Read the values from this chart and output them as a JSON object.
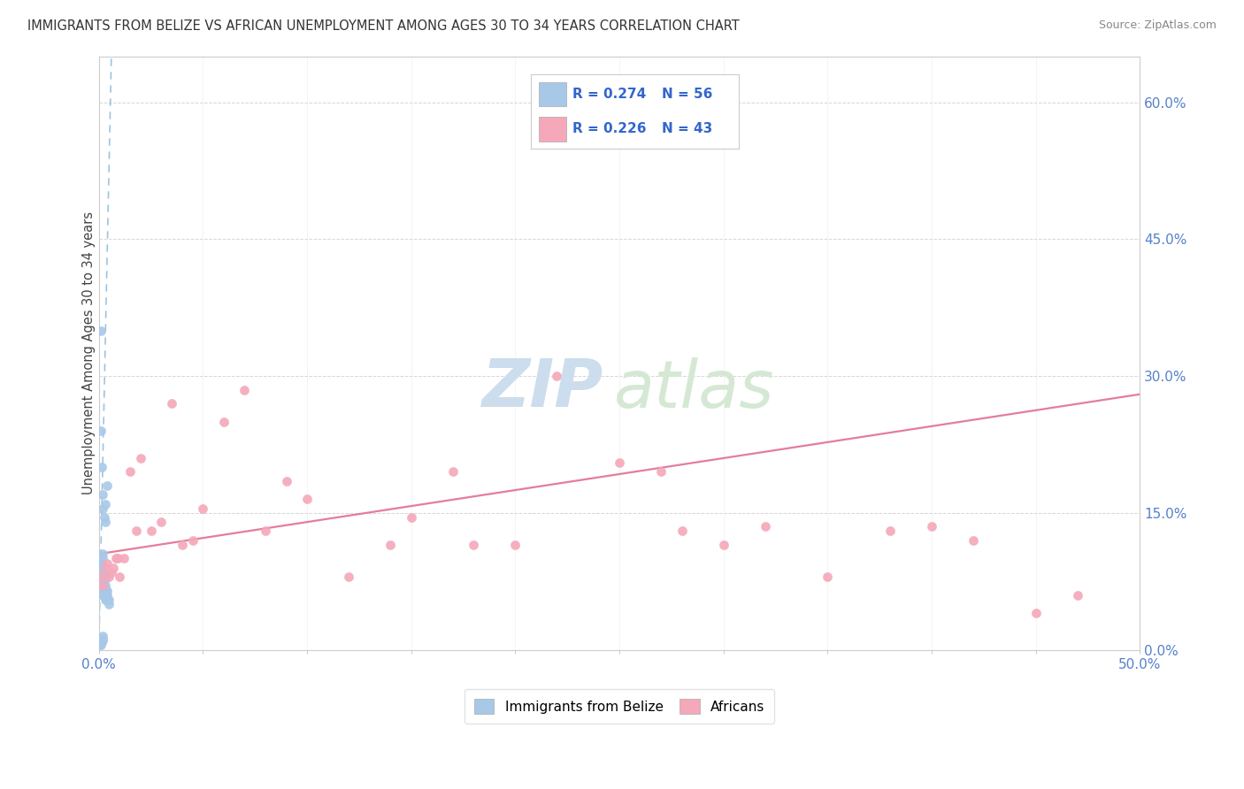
{
  "title": "IMMIGRANTS FROM BELIZE VS AFRICAN UNEMPLOYMENT AMONG AGES 30 TO 34 YEARS CORRELATION CHART",
  "source": "Source: ZipAtlas.com",
  "ylabel": "Unemployment Among Ages 30 to 34 years",
  "xlim": [
    0.0,
    0.5
  ],
  "ylim": [
    0.0,
    0.65
  ],
  "legend_r1": "R = 0.274",
  "legend_n1": "N = 56",
  "legend_r2": "R = 0.226",
  "legend_n2": "N = 43",
  "belize_color": "#a8c8e8",
  "african_color": "#f4a8ba",
  "trendline_belize_color": "#88bbdd",
  "trendline_african_color": "#e07090",
  "belize_trend_x": [
    0.0,
    0.006
  ],
  "belize_trend_y": [
    0.0,
    0.65
  ],
  "african_trend_x": [
    0.0,
    0.5
  ],
  "african_trend_y": [
    0.105,
    0.28
  ],
  "belize_scatter_x": [
    0.0005,
    0.0008,
    0.001,
    0.001,
    0.001,
    0.001,
    0.001,
    0.001,
    0.001,
    0.0015,
    0.0015,
    0.0015,
    0.0015,
    0.0015,
    0.0015,
    0.0015,
    0.002,
    0.002,
    0.002,
    0.002,
    0.002,
    0.002,
    0.002,
    0.002,
    0.0025,
    0.0025,
    0.0025,
    0.0025,
    0.003,
    0.003,
    0.003,
    0.003,
    0.003,
    0.0035,
    0.0035,
    0.004,
    0.004,
    0.004,
    0.005,
    0.005,
    0.0005,
    0.001,
    0.001,
    0.0015,
    0.002,
    0.002,
    0.002,
    0.0008,
    0.001,
    0.0015,
    0.002,
    0.002,
    0.0025,
    0.003,
    0.003,
    0.004
  ],
  "belize_scatter_y": [
    0.075,
    0.08,
    0.07,
    0.075,
    0.08,
    0.085,
    0.09,
    0.095,
    0.1,
    0.065,
    0.07,
    0.075,
    0.08,
    0.085,
    0.09,
    0.095,
    0.06,
    0.065,
    0.07,
    0.075,
    0.08,
    0.085,
    0.1,
    0.105,
    0.06,
    0.065,
    0.07,
    0.075,
    0.055,
    0.06,
    0.065,
    0.07,
    0.08,
    0.06,
    0.065,
    0.055,
    0.06,
    0.065,
    0.05,
    0.055,
    0.005,
    0.005,
    0.01,
    0.008,
    0.01,
    0.012,
    0.015,
    0.35,
    0.24,
    0.2,
    0.17,
    0.155,
    0.145,
    0.14,
    0.16,
    0.18
  ],
  "african_scatter_x": [
    0.001,
    0.002,
    0.003,
    0.004,
    0.005,
    0.006,
    0.007,
    0.008,
    0.009,
    0.01,
    0.012,
    0.015,
    0.018,
    0.02,
    0.025,
    0.03,
    0.035,
    0.04,
    0.045,
    0.05,
    0.06,
    0.07,
    0.08,
    0.09,
    0.1,
    0.12,
    0.14,
    0.15,
    0.17,
    0.18,
    0.2,
    0.22,
    0.25,
    0.27,
    0.28,
    0.3,
    0.32,
    0.35,
    0.38,
    0.4,
    0.42,
    0.45,
    0.47
  ],
  "african_scatter_y": [
    0.08,
    0.07,
    0.09,
    0.095,
    0.08,
    0.085,
    0.09,
    0.1,
    0.1,
    0.08,
    0.1,
    0.195,
    0.13,
    0.21,
    0.13,
    0.14,
    0.27,
    0.115,
    0.12,
    0.155,
    0.25,
    0.285,
    0.13,
    0.185,
    0.165,
    0.08,
    0.115,
    0.145,
    0.195,
    0.115,
    0.115,
    0.3,
    0.205,
    0.195,
    0.13,
    0.115,
    0.135,
    0.08,
    0.13,
    0.135,
    0.12,
    0.04,
    0.06
  ],
  "watermark_zip_color": "#ccdded",
  "watermark_atlas_color": "#d5e8d4"
}
